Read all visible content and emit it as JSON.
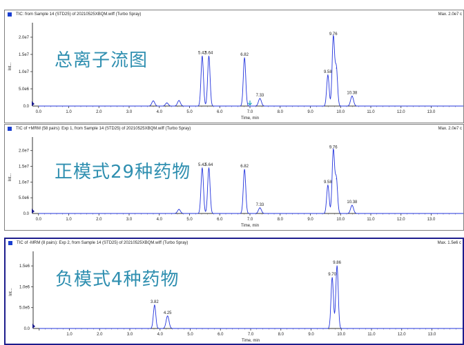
{
  "chart_data": [
    {
      "type": "line",
      "header": "TIC: from Sample 14 (STD25) of 20210525XBQM.wiff (Turbo Spray)",
      "max_label": "Max. 2.0e7 c",
      "overlay_label": "总离子流图",
      "xlabel": "Time, min",
      "ylabel": "Int...",
      "xlim": [
        -0.2,
        14.2
      ],
      "ylim": [
        0,
        23000000.0
      ],
      "x_ticks": [
        "0.0",
        "1.0",
        "2.0",
        "3.0",
        "4.0",
        "5.0",
        "6.0",
        "7.0",
        "8.0",
        "9.0",
        "10.0",
        "11.0",
        "12.0",
        "13.0"
      ],
      "y_ticks": [
        {
          "v": 5000000.0,
          "label": "5.0e6"
        },
        {
          "v": 10000000.0,
          "label": "1.0e7"
        },
        {
          "v": 15000000.0,
          "label": "1.5e7"
        },
        {
          "v": 20000000.0,
          "label": "2.0e7"
        }
      ],
      "zero_label": "0.0",
      "marker_x": 7.0,
      "peaks": [
        {
          "x": 3.8,
          "y": 1500000.0,
          "label": ""
        },
        {
          "x": 4.25,
          "y": 900000.0,
          "label": ""
        },
        {
          "x": 4.65,
          "y": 1600000.0,
          "label": ""
        },
        {
          "x": 5.42,
          "y": 14500000.0,
          "label": "5.42"
        },
        {
          "x": 5.64,
          "y": 14500000.0,
          "label": "5.64"
        },
        {
          "x": 6.82,
          "y": 14000000.0,
          "label": "6.82"
        },
        {
          "x": 7.33,
          "y": 2200000.0,
          "label": "7.33"
        },
        {
          "x": 9.58,
          "y": 9000000.0,
          "label": "9.58"
        },
        {
          "x": 9.76,
          "y": 20000000.0,
          "label": "9.76"
        },
        {
          "x": 9.86,
          "y": 11000000.0,
          "label": ""
        },
        {
          "x": 10.38,
          "y": 2900000.0,
          "label": "10.38"
        }
      ]
    },
    {
      "type": "line",
      "header": "TIC of +MRM (58 pairs): Exp 1, from Sample 14 (STD25) of 20210525XBQM.wiff (Turbo Spray)",
      "max_label": "Max. 2.0e7 c",
      "overlay_label": "正模式29种药物",
      "xlabel": "Time, min",
      "ylabel": "Int...",
      "xlim": [
        -0.2,
        14.2
      ],
      "ylim": [
        0,
        23000000.0
      ],
      "x_ticks": [
        "0.0",
        "1.0",
        "2.0",
        "3.0",
        "4.0",
        "5.0",
        "6.0",
        "7.0",
        "8.0",
        "9.0",
        "10.0",
        "11.0",
        "12.0",
        "13.0"
      ],
      "y_ticks": [
        {
          "v": 5000000.0,
          "label": "5.0e6"
        },
        {
          "v": 10000000.0,
          "label": "1.0e7"
        },
        {
          "v": 15000000.0,
          "label": "1.5e7"
        },
        {
          "v": 20000000.0,
          "label": "2.0e7"
        }
      ],
      "zero_label": "0.0",
      "marker_x": null,
      "peaks": [
        {
          "x": 4.65,
          "y": 1300000.0,
          "label": ""
        },
        {
          "x": 5.42,
          "y": 14500000.0,
          "label": "5.42"
        },
        {
          "x": 5.64,
          "y": 14500000.0,
          "label": "5.64"
        },
        {
          "x": 6.82,
          "y": 14000000.0,
          "label": "6.82"
        },
        {
          "x": 7.33,
          "y": 1800000.0,
          "label": "7.33"
        },
        {
          "x": 9.58,
          "y": 9000000.0,
          "label": "9.58"
        },
        {
          "x": 9.76,
          "y": 20000000.0,
          "label": "9.76"
        },
        {
          "x": 9.86,
          "y": 11000000.0,
          "label": ""
        },
        {
          "x": 10.38,
          "y": 2600000.0,
          "label": "10.38"
        }
      ]
    },
    {
      "type": "line",
      "header": "TIC of -MRM (8 pairs): Exp 2, from Sample 14 (STD25) of 20210525XBQM.wiff (Turbo Spray)",
      "max_label": "Max. 1.5e6 c",
      "overlay_label": "负模式4种药物",
      "xlabel": "Time, min",
      "ylabel": "Int...",
      "xlim": [
        -0.2,
        14.2
      ],
      "ylim": [
        0,
        1750000.0
      ],
      "x_ticks": [
        "",
        "1.0",
        "2.0",
        "3.0",
        "4.0",
        "5.0",
        "6.0",
        "7.0",
        "8.0",
        "9.0",
        "10.0",
        "11.0",
        "12.0",
        "13.0"
      ],
      "y_ticks": [
        {
          "v": 500000.0,
          "label": "5.0e5"
        },
        {
          "v": 1000000.0,
          "label": "1.0e6"
        },
        {
          "v": 1500000.0,
          "label": "1.5e6"
        }
      ],
      "zero_label": "0.0",
      "marker_x": null,
      "peaks": [
        {
          "x": 3.82,
          "y": 560000.0,
          "label": "3.82"
        },
        {
          "x": 4.25,
          "y": 300000.0,
          "label": "4.25"
        },
        {
          "x": 9.7,
          "y": 1220000.0,
          "label": "9.70"
        },
        {
          "x": 9.86,
          "y": 1500000.0,
          "label": "9.86"
        }
      ]
    }
  ]
}
